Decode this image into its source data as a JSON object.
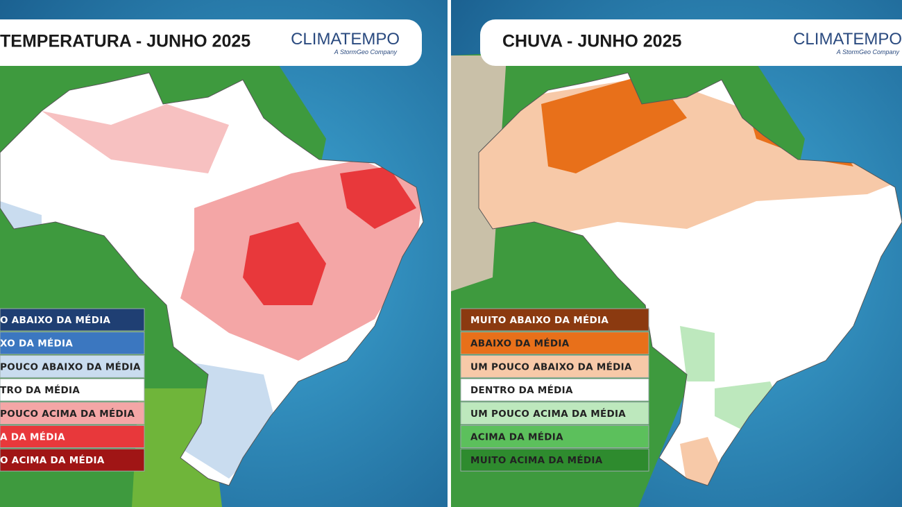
{
  "panels": [
    {
      "title": "TEMPERATURA - JUNHO 2025",
      "logo": "CLIMATEMPO",
      "tagline": "A StormGeo Company",
      "legend": [
        {
          "label": "O ABAIXO DA MÉDIA",
          "color": "#1f3f73",
          "text_color": "#ffffff"
        },
        {
          "label": "XO DA MÉDIA",
          "color": "#3b77c0",
          "text_color": "#ffffff"
        },
        {
          "label": "POUCO ABAIXO DA MÉDIA",
          "color": "#c9dcef",
          "text_color": "#222222"
        },
        {
          "label": "TRO DA MÉDIA",
          "color": "#ffffff",
          "text_color": "#222222"
        },
        {
          "label": "POUCO ACIMA DA MÉDIA",
          "color": "#f4a6a6",
          "text_color": "#222222"
        },
        {
          "label": "A DA MÉDIA",
          "color": "#e8383b",
          "text_color": "#ffffff"
        },
        {
          "label": "O ACIMA DA MÉDIA",
          "color": "#a01515",
          "text_color": "#ffffff"
        }
      ]
    },
    {
      "title": "CHUVA - JUNHO 2025",
      "logo": "CLIMATEMPO",
      "tagline": "A StormGeo Company",
      "legend": [
        {
          "label": "MUITO ABAIXO DA MÉDIA",
          "color": "#8b3a10",
          "text_color": "#ffffff"
        },
        {
          "label": "ABAIXO DA MÉDIA",
          "color": "#e8701a",
          "text_color": "#222222"
        },
        {
          "label": "UM POUCO ABAIXO DA MÉDIA",
          "color": "#f7c9a8",
          "text_color": "#222222"
        },
        {
          "label": "DENTRO DA MÉDIA",
          "color": "#ffffff",
          "text_color": "#222222"
        },
        {
          "label": "UM POUCO ACIMA DA MÉDIA",
          "color": "#bde8bd",
          "text_color": "#222222"
        },
        {
          "label": "ACIMA DA MÉDIA",
          "color": "#5cc05c",
          "text_color": "#222222"
        },
        {
          "label": "MUITO ACIMA DA MÉDIA",
          "color": "#2e8b2e",
          "text_color": "#222222"
        }
      ]
    }
  ]
}
